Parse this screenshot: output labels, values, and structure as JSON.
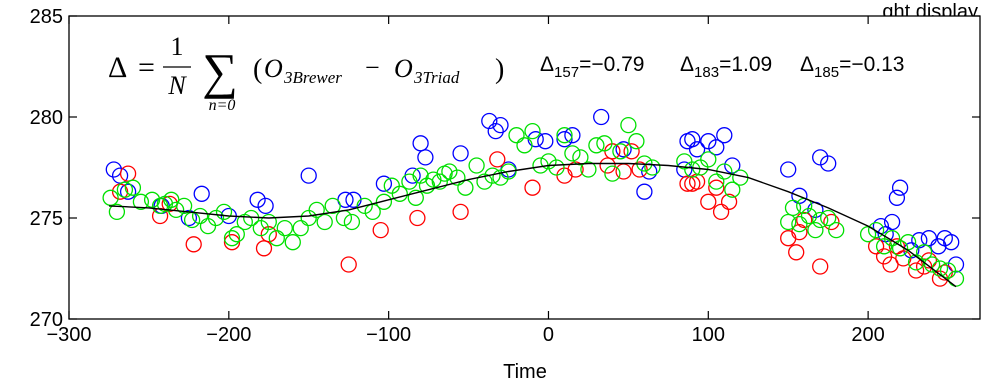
{
  "chart_data": {
    "type": "scatter",
    "title": "…ght display",
    "xlabel": "Time",
    "ylabel": "",
    "xlim": [
      -300,
      270
    ],
    "ylim": [
      270,
      285
    ],
    "x_ticks": [
      -300,
      -200,
      -100,
      0,
      100,
      200
    ],
    "y_ticks": [
      270,
      275,
      280,
      285
    ],
    "x_tick_labels": [
      "−300",
      "−200",
      "−100",
      "0",
      "100",
      "200"
    ],
    "y_tick_labels": [
      "270",
      "275",
      "280",
      "285"
    ],
    "grid": false,
    "legend": "none",
    "annotation": {
      "formula_lhs": "Δ",
      "formula_eq": "=",
      "formula_num": "1",
      "formula_den": "N",
      "formula_sum": "∑",
      "formula_sub": "n=0",
      "formula_open": "(",
      "formula_o1": "O",
      "formula_o1_sub": "3Brewer",
      "formula_minus": "−",
      "formula_o2": "O",
      "formula_o2_sub": "3Triad",
      "formula_close": ")",
      "stats": [
        {
          "symbol": "Δ",
          "subscript": "157",
          "value": "=−0.79"
        },
        {
          "symbol": "Δ",
          "subscript": "183",
          "value": "=1.09"
        },
        {
          "symbol": "Δ",
          "subscript": "185",
          "value": "=−0.13"
        }
      ]
    },
    "fit_line": {
      "name": "",
      "color": "#000000",
      "x": [
        -275,
        -250,
        -225,
        -200,
        -175,
        -150,
        -125,
        -100,
        -75,
        -50,
        -25,
        0,
        25,
        50,
        75,
        100,
        125,
        150,
        175,
        200,
        225,
        255
      ],
      "y": [
        275.6,
        275.5,
        275.3,
        275.1,
        275.0,
        275.1,
        275.4,
        275.9,
        276.4,
        276.9,
        277.3,
        277.6,
        277.7,
        277.7,
        277.6,
        277.4,
        277.0,
        276.3,
        275.5,
        274.6,
        273.4,
        271.6
      ]
    },
    "series": [
      {
        "name": "",
        "color": "#0000ff",
        "x": [
          -272,
          -268,
          -263,
          -242,
          -225,
          -217,
          -200,
          -182,
          -177,
          -150,
          -127,
          -122,
          -103,
          -85,
          -80,
          -77,
          -55,
          -37,
          -33,
          -30,
          -25,
          -8,
          -2,
          10,
          15,
          33,
          47,
          60,
          63,
          85,
          87,
          90,
          93,
          100,
          105,
          110,
          115,
          150,
          157,
          167,
          170,
          175,
          208,
          211,
          215,
          218,
          220,
          227,
          232,
          238,
          244,
          248,
          252,
          255
        ],
        "y": [
          277.4,
          277.1,
          276.3,
          275.6,
          275.0,
          276.2,
          275.1,
          275.9,
          275.6,
          277.1,
          275.9,
          275.9,
          276.7,
          277.1,
          278.7,
          278.0,
          278.2,
          279.8,
          279.3,
          279.6,
          277.4,
          278.9,
          278.8,
          278.9,
          279.1,
          280.0,
          278.4,
          276.3,
          277.3,
          277.4,
          278.8,
          278.9,
          278.4,
          278.8,
          278.5,
          279.1,
          277.6,
          277.4,
          276.1,
          275.4,
          278.0,
          277.7,
          274.6,
          274.2,
          274.8,
          276.0,
          276.5,
          273.4,
          273.9,
          274.0,
          273.6,
          274.0,
          273.8,
          272.7
        ]
      },
      {
        "name": "",
        "color": "#ff0000",
        "x": [
          -268,
          -263,
          -243,
          -237,
          -222,
          -198,
          -178,
          -175,
          -125,
          -105,
          -82,
          -55,
          -32,
          -10,
          10,
          17,
          37,
          40,
          47,
          52,
          57,
          87,
          90,
          93,
          100,
          105,
          108,
          113,
          150,
          155,
          157,
          160,
          170,
          177,
          205,
          210,
          214,
          218,
          222,
          230,
          235,
          238,
          245,
          248
        ],
        "y": [
          276.3,
          277.2,
          275.1,
          275.7,
          273.7,
          273.8,
          273.5,
          274.2,
          272.7,
          274.4,
          275.0,
          275.3,
          277.9,
          276.5,
          277.1,
          277.4,
          277.6,
          278.3,
          277.3,
          278.3,
          277.4,
          276.7,
          276.7,
          276.8,
          275.8,
          276.5,
          275.3,
          275.8,
          274.0,
          273.3,
          274.3,
          274.9,
          272.6,
          274.8,
          273.6,
          273.1,
          272.7,
          273.6,
          273.0,
          272.4,
          272.6,
          272.9,
          272.0,
          272.3
        ]
      },
      {
        "name": "",
        "color": "#00e000",
        "x": [
          -274,
          -270,
          -265,
          -260,
          -255,
          -248,
          -243,
          -240,
          -236,
          -233,
          -228,
          -223,
          -218,
          -213,
          -208,
          -203,
          -198,
          -195,
          -190,
          -186,
          -180,
          -175,
          -170,
          -165,
          -160,
          -155,
          -150,
          -145,
          -140,
          -135,
          -128,
          -123,
          -115,
          -110,
          -103,
          -98,
          -93,
          -87,
          -83,
          -80,
          -76,
          -72,
          -68,
          -65,
          -62,
          -57,
          -52,
          -45,
          -40,
          -35,
          -30,
          -25,
          -20,
          -15,
          -10,
          -5,
          0,
          5,
          10,
          15,
          20,
          25,
          30,
          35,
          40,
          45,
          50,
          55,
          60,
          65,
          85,
          90,
          95,
          100,
          105,
          110,
          115,
          120,
          150,
          153,
          157,
          160,
          163,
          167,
          170,
          175,
          180,
          200,
          205,
          210,
          215,
          220,
          225,
          230,
          235,
          240,
          245,
          250,
          255
        ],
        "y": [
          276.0,
          275.3,
          276.4,
          276.5,
          275.8,
          275.9,
          275.6,
          275.7,
          275.9,
          275.4,
          275.6,
          274.9,
          275.1,
          274.6,
          275.0,
          275.3,
          274.0,
          274.2,
          274.8,
          275.0,
          274.5,
          274.8,
          274.0,
          274.5,
          273.8,
          274.5,
          275.0,
          275.4,
          274.8,
          275.6,
          275.0,
          274.8,
          275.6,
          275.3,
          275.8,
          276.6,
          276.2,
          276.8,
          276.0,
          277.1,
          276.6,
          276.9,
          276.8,
          277.2,
          277.3,
          277.0,
          276.5,
          277.6,
          276.8,
          277.1,
          277.0,
          277.3,
          279.1,
          278.6,
          279.3,
          277.6,
          277.8,
          277.5,
          279.1,
          278.2,
          278.0,
          277.4,
          278.6,
          278.7,
          277.2,
          278.3,
          279.6,
          278.8,
          277.7,
          277.5,
          277.8,
          277.4,
          277.5,
          277.9,
          276.8,
          277.3,
          276.4,
          277.0,
          274.8,
          275.5,
          274.7,
          275.6,
          275.1,
          274.4,
          274.9,
          275.0,
          274.4,
          274.2,
          274.4,
          273.6,
          274.0,
          273.5,
          273.8,
          272.8,
          273.3,
          272.7,
          272.5,
          272.4,
          272.0
        ]
      }
    ]
  }
}
